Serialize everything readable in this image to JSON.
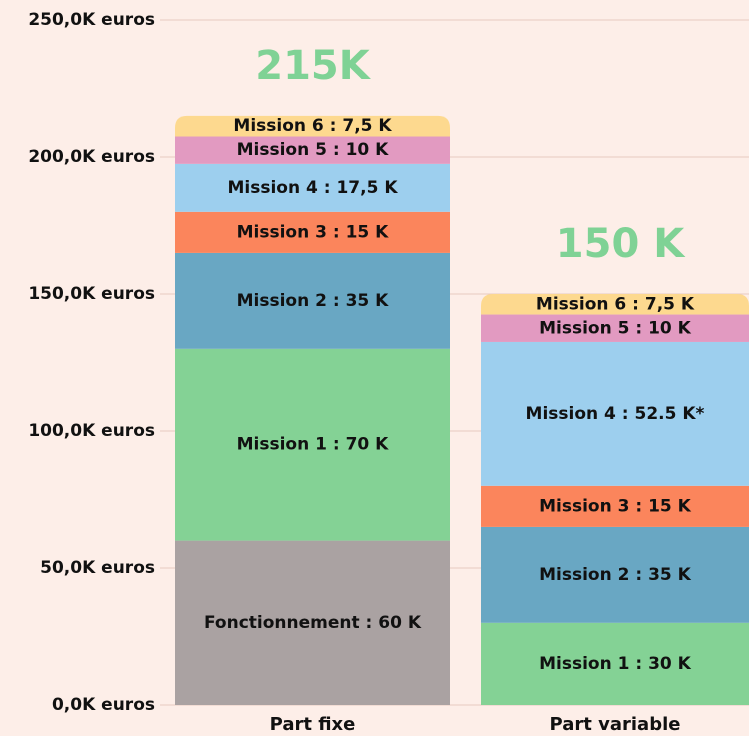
{
  "chart_data": {
    "type": "stacked_bar",
    "categories": [
      "Part fixe",
      "Part variable"
    ],
    "series": [
      {
        "color": "#aaa2a2",
        "values": [
          60,
          null
        ],
        "value_labels": [
          "Fonctionnement : 60 K",
          null
        ]
      },
      {
        "color": "#84d295",
        "values": [
          70,
          30
        ],
        "value_labels": [
          "Mission 1 : 70 K",
          "Mission 1 : 30 K"
        ]
      },
      {
        "color": "#69a7c3",
        "values": [
          35,
          35
        ],
        "value_labels": [
          "Mission 2 : 35 K",
          "Mission 2 : 35 K"
        ]
      },
      {
        "color": "#fb855c",
        "values": [
          15,
          15
        ],
        "value_labels": [
          "Mission 3 : 15 K",
          "Mission 3 : 15 K"
        ]
      },
      {
        "color": "#9dcfee",
        "values": [
          17.5,
          52.5
        ],
        "value_labels": [
          "Mission 4 : 17,5 K",
          "Mission 4 : 52.5 K*"
        ]
      },
      {
        "color": "#e29ac1",
        "values": [
          10,
          10
        ],
        "value_labels": [
          "Mission 5 : 10 K",
          "Mission 5 : 10 K"
        ]
      },
      {
        "color": "#fdd98f",
        "values": [
          7.5,
          7.5
        ],
        "value_labels": [
          "Mission 6 : 7,5 K",
          "Mission 6 : 7,5 K"
        ]
      }
    ],
    "totals": {
      "values": [
        215,
        150
      ],
      "value_labels": [
        "215K",
        "150 K"
      ],
      "color": "#7fd295"
    },
    "ylim": [
      0,
      250
    ],
    "yticks": [
      {
        "value": 0,
        "label": "0,0K euros"
      },
      {
        "value": 50,
        "label": "50,0K euros"
      },
      {
        "value": 100,
        "label": "100,0K euros"
      },
      {
        "value": 150,
        "label": "150,0K euros"
      },
      {
        "value": 200,
        "label": "200,0K euros"
      },
      {
        "value": 250,
        "label": "250,0K euros"
      }
    ],
    "grid": true
  }
}
